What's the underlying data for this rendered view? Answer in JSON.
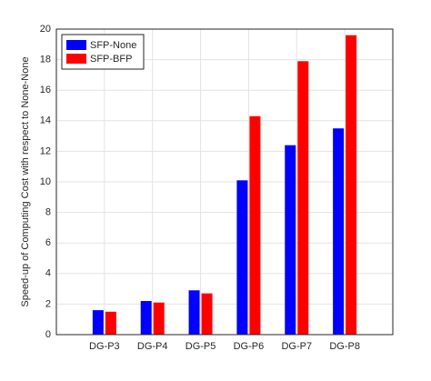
{
  "chart_data": {
    "type": "bar",
    "y_label": "Speed-up of Computing Cost with respect to None-None",
    "categories": [
      "DG-P3",
      "DG-P4",
      "DG-P5",
      "DG-P6",
      "DG-P7",
      "DG-P8"
    ],
    "series": [
      {
        "name": "SFP-None",
        "color": "#0000ff",
        "values": [
          1.6,
          2.2,
          2.9,
          10.1,
          12.4,
          13.5
        ]
      },
      {
        "name": "SFP-BFP",
        "color": "#ff0000",
        "values": [
          1.5,
          2.1,
          2.7,
          14.3,
          17.9,
          19.6
        ]
      }
    ],
    "ylim": [
      0,
      20
    ],
    "yticks": [
      0,
      2,
      4,
      6,
      8,
      10,
      12,
      14,
      16,
      18,
      20
    ],
    "grid": true,
    "legend": "upper-left"
  }
}
